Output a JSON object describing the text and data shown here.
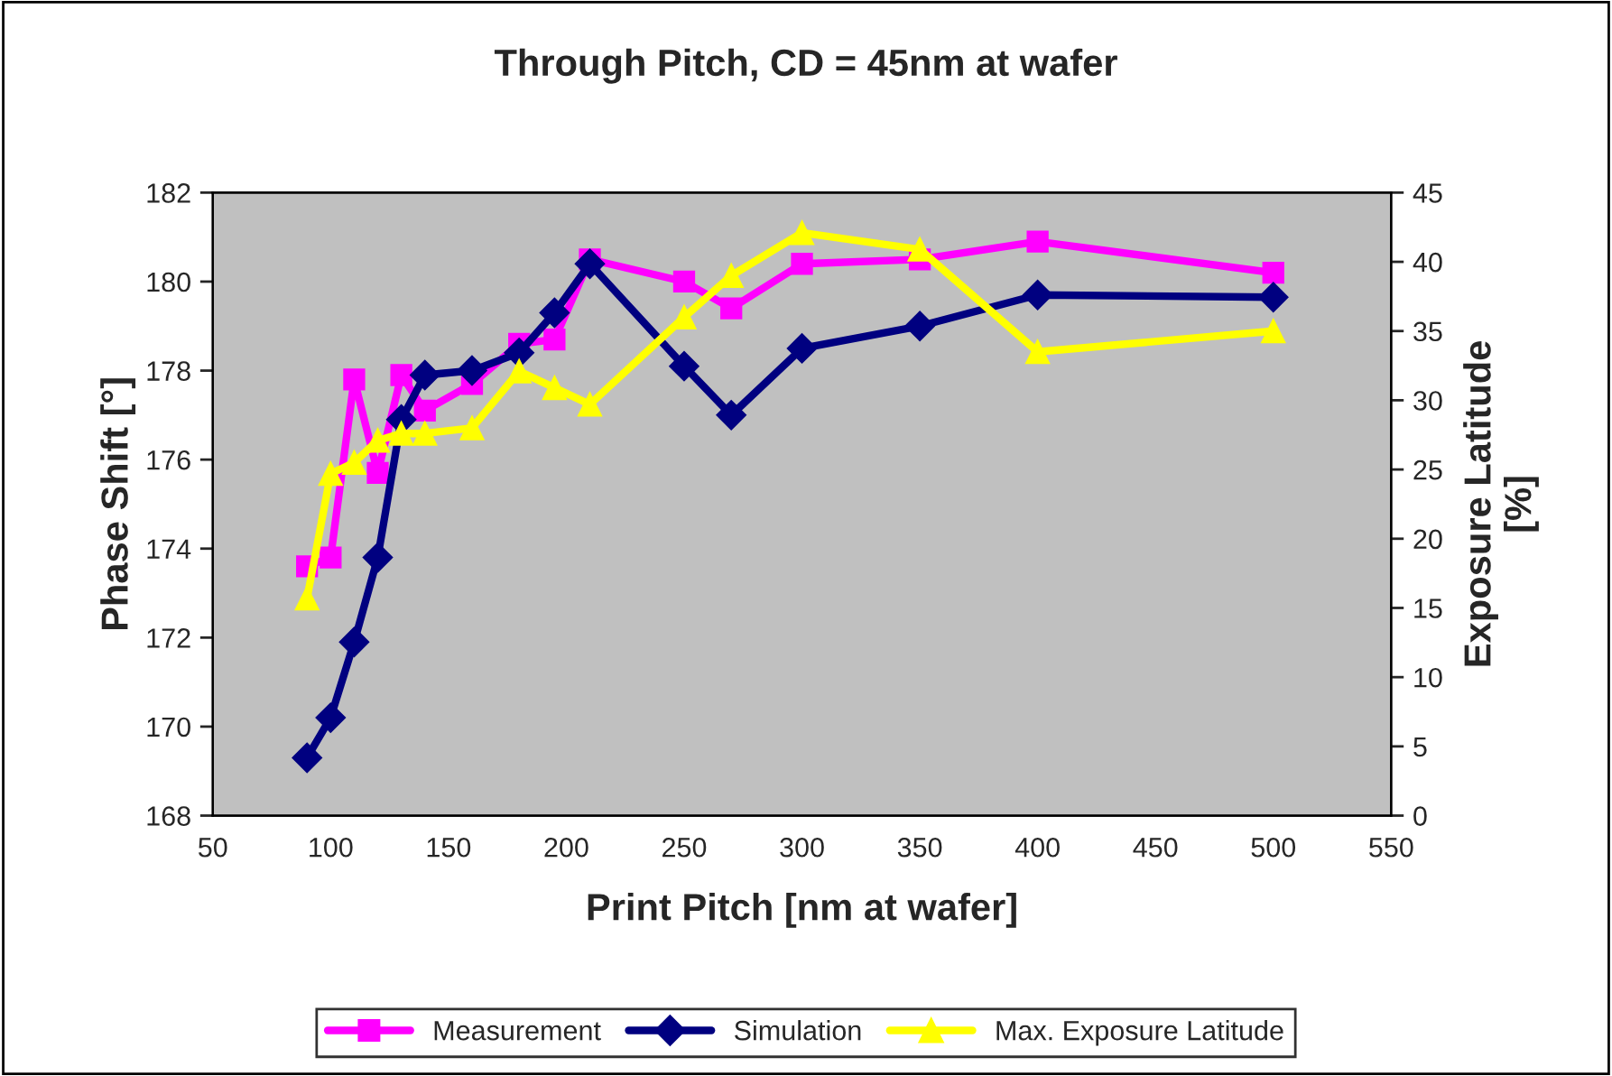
{
  "chart_data": {
    "type": "line",
    "title": "Through Pitch, CD = 45nm at wafer",
    "xlabel": "Print Pitch [nm at wafer]",
    "ylabel": "Phase Shift [°]",
    "y2label": "Exposure Latitude\n[%]",
    "x": [
      90,
      100,
      110,
      120,
      130,
      140,
      160,
      180,
      195,
      210,
      250,
      270,
      300,
      350,
      400,
      500
    ],
    "series": [
      {
        "name": "Measurement",
        "color": "#ff00ff",
        "marker": "square",
        "values": [
          173.6,
          173.8,
          177.8,
          175.7,
          177.9,
          177.1,
          177.7,
          178.6,
          178.7,
          180.5,
          180.0,
          179.4,
          180.4,
          180.5,
          180.9,
          180.2
        ]
      },
      {
        "name": "Simulation",
        "color": "#000080",
        "marker": "diamond",
        "values": [
          169.3,
          170.2,
          171.9,
          173.8,
          176.9,
          177.9,
          178.0,
          178.4,
          179.3,
          180.4,
          178.1,
          177.0,
          178.5,
          179.0,
          179.7,
          179.65
        ]
      },
      {
        "name": "Max. Exposure Latitude",
        "color": "#ffff00",
        "marker": "triangle",
        "axis": "y2",
        "values": [
          15.7,
          24.7,
          25.5,
          27.1,
          27.6,
          27.6,
          28.0,
          32.1,
          30.9,
          29.7,
          36.0,
          39.0,
          42.1,
          40.9,
          33.5,
          35.0
        ]
      }
    ],
    "xlim": [
      50,
      550
    ],
    "xticks": [
      50,
      100,
      150,
      200,
      250,
      300,
      350,
      400,
      450,
      500,
      550
    ],
    "ylim": [
      168,
      182
    ],
    "yticks": [
      168,
      170,
      172,
      174,
      176,
      178,
      180,
      182
    ],
    "y2lim": [
      0,
      45
    ],
    "y2ticks": [
      0,
      5,
      10,
      15,
      20,
      25,
      30,
      35,
      40,
      45
    ],
    "grid": false,
    "legend": "bottom"
  }
}
